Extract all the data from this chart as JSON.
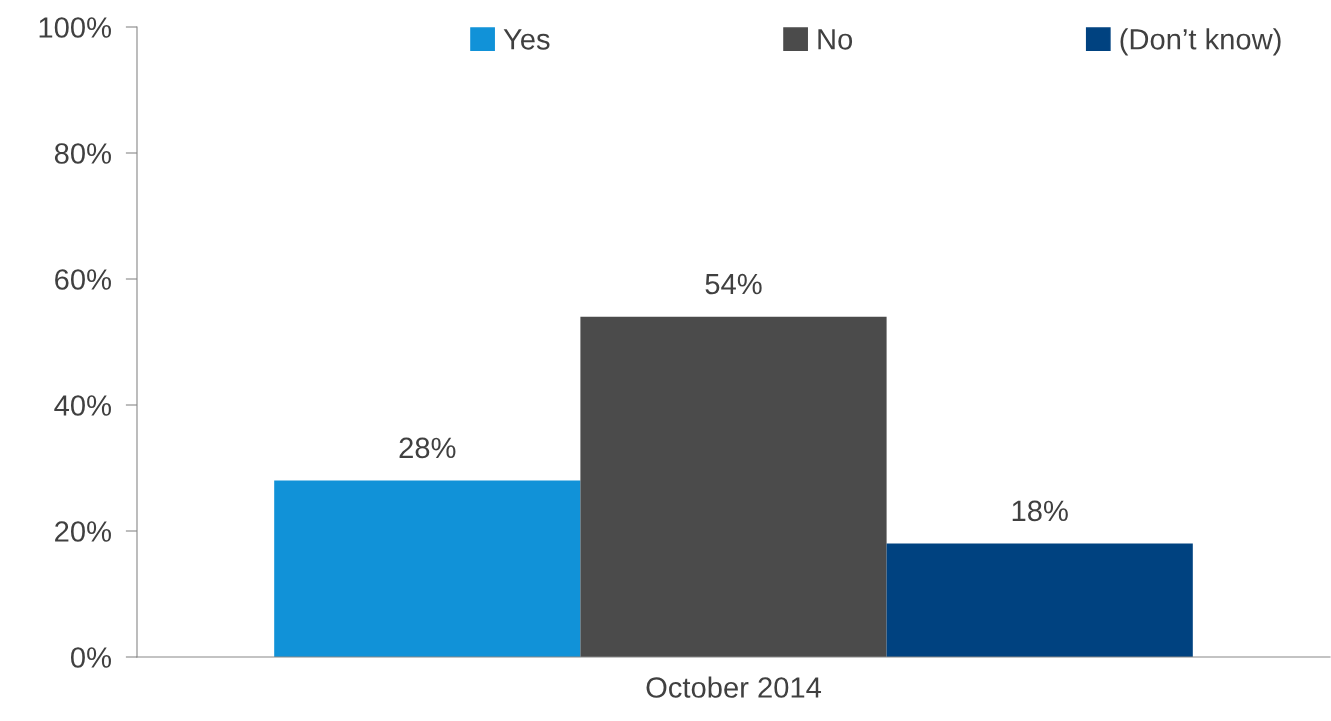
{
  "chart_data": {
    "type": "bar",
    "categories": [
      "October 2014"
    ],
    "series": [
      {
        "name": "Yes",
        "color": "#1192d8",
        "values": [
          28
        ],
        "value_labels": [
          "28%"
        ]
      },
      {
        "name": "No",
        "color": "#4b4b4b",
        "values": [
          54
        ],
        "value_labels": [
          "54%"
        ]
      },
      {
        "name": "(Don’t know)",
        "color": "#004280",
        "values": [
          18
        ],
        "value_labels": [
          "18%"
        ]
      }
    ],
    "ylim": [
      0,
      100
    ],
    "yticks": [
      {
        "value": 0,
        "label": "0%"
      },
      {
        "value": 20,
        "label": "20%"
      },
      {
        "value": 40,
        "label": "40%"
      },
      {
        "value": 60,
        "label": "60%"
      },
      {
        "value": 80,
        "label": "80%"
      },
      {
        "value": 100,
        "label": "100%"
      }
    ],
    "grid": false,
    "legend": "top"
  }
}
